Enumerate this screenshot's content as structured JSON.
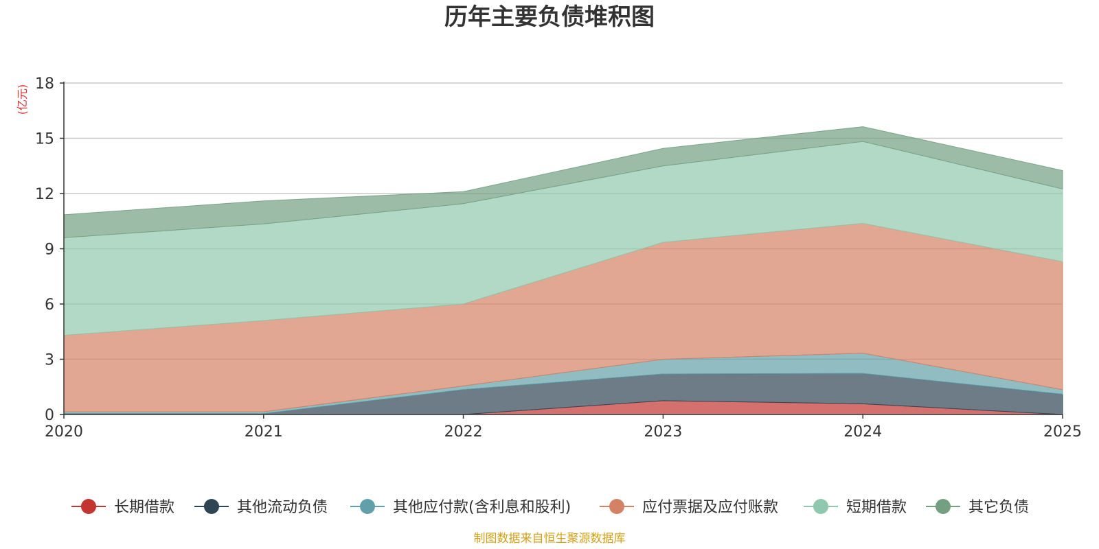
{
  "chart_data": {
    "type": "area",
    "stacked": true,
    "title": "历年主要负债堆积图",
    "unit_label": "(亿元)",
    "xlabel": "",
    "ylabel": "(亿元)",
    "categories": [
      "2020",
      "2021",
      "2022",
      "2023",
      "2024",
      "2025"
    ],
    "ylim": [
      0,
      18
    ],
    "yticks": [
      0,
      3,
      6,
      9,
      12,
      15,
      18
    ],
    "grid": true,
    "legend_position": "bottom",
    "series": [
      {
        "name": "长期借款",
        "color": "#c23531",
        "values": [
          0,
          0,
          0,
          0.75,
          0.58,
          0
        ]
      },
      {
        "name": "其他流动负债",
        "color": "#2f4554",
        "values": [
          0.05,
          0.05,
          1.35,
          1.45,
          1.65,
          1.1
        ]
      },
      {
        "name": "其他应付款(含利息和股利)",
        "color": "#61a0a8",
        "values": [
          0.1,
          0.1,
          0.2,
          0.8,
          1.1,
          0.25
        ]
      },
      {
        "name": "应付票据及应付账款",
        "color": "#d48265",
        "values": [
          4.15,
          4.95,
          4.45,
          6.35,
          7.05,
          6.95
        ]
      },
      {
        "name": "短期借款",
        "color": "#91c7ae",
        "values": [
          5.3,
          5.25,
          5.45,
          4.15,
          4.45,
          3.95
        ]
      },
      {
        "name": "其它负债",
        "color": "#749f83",
        "values": [
          1.25,
          1.25,
          0.65,
          0.95,
          0.8,
          1.0
        ]
      }
    ]
  },
  "source_note": "制图数据来自恒生聚源数据库",
  "colors": {
    "source_note": "#d4a017",
    "unit_label": "#e03030",
    "axis": "#333333",
    "grid": "#c8c8c8"
  }
}
